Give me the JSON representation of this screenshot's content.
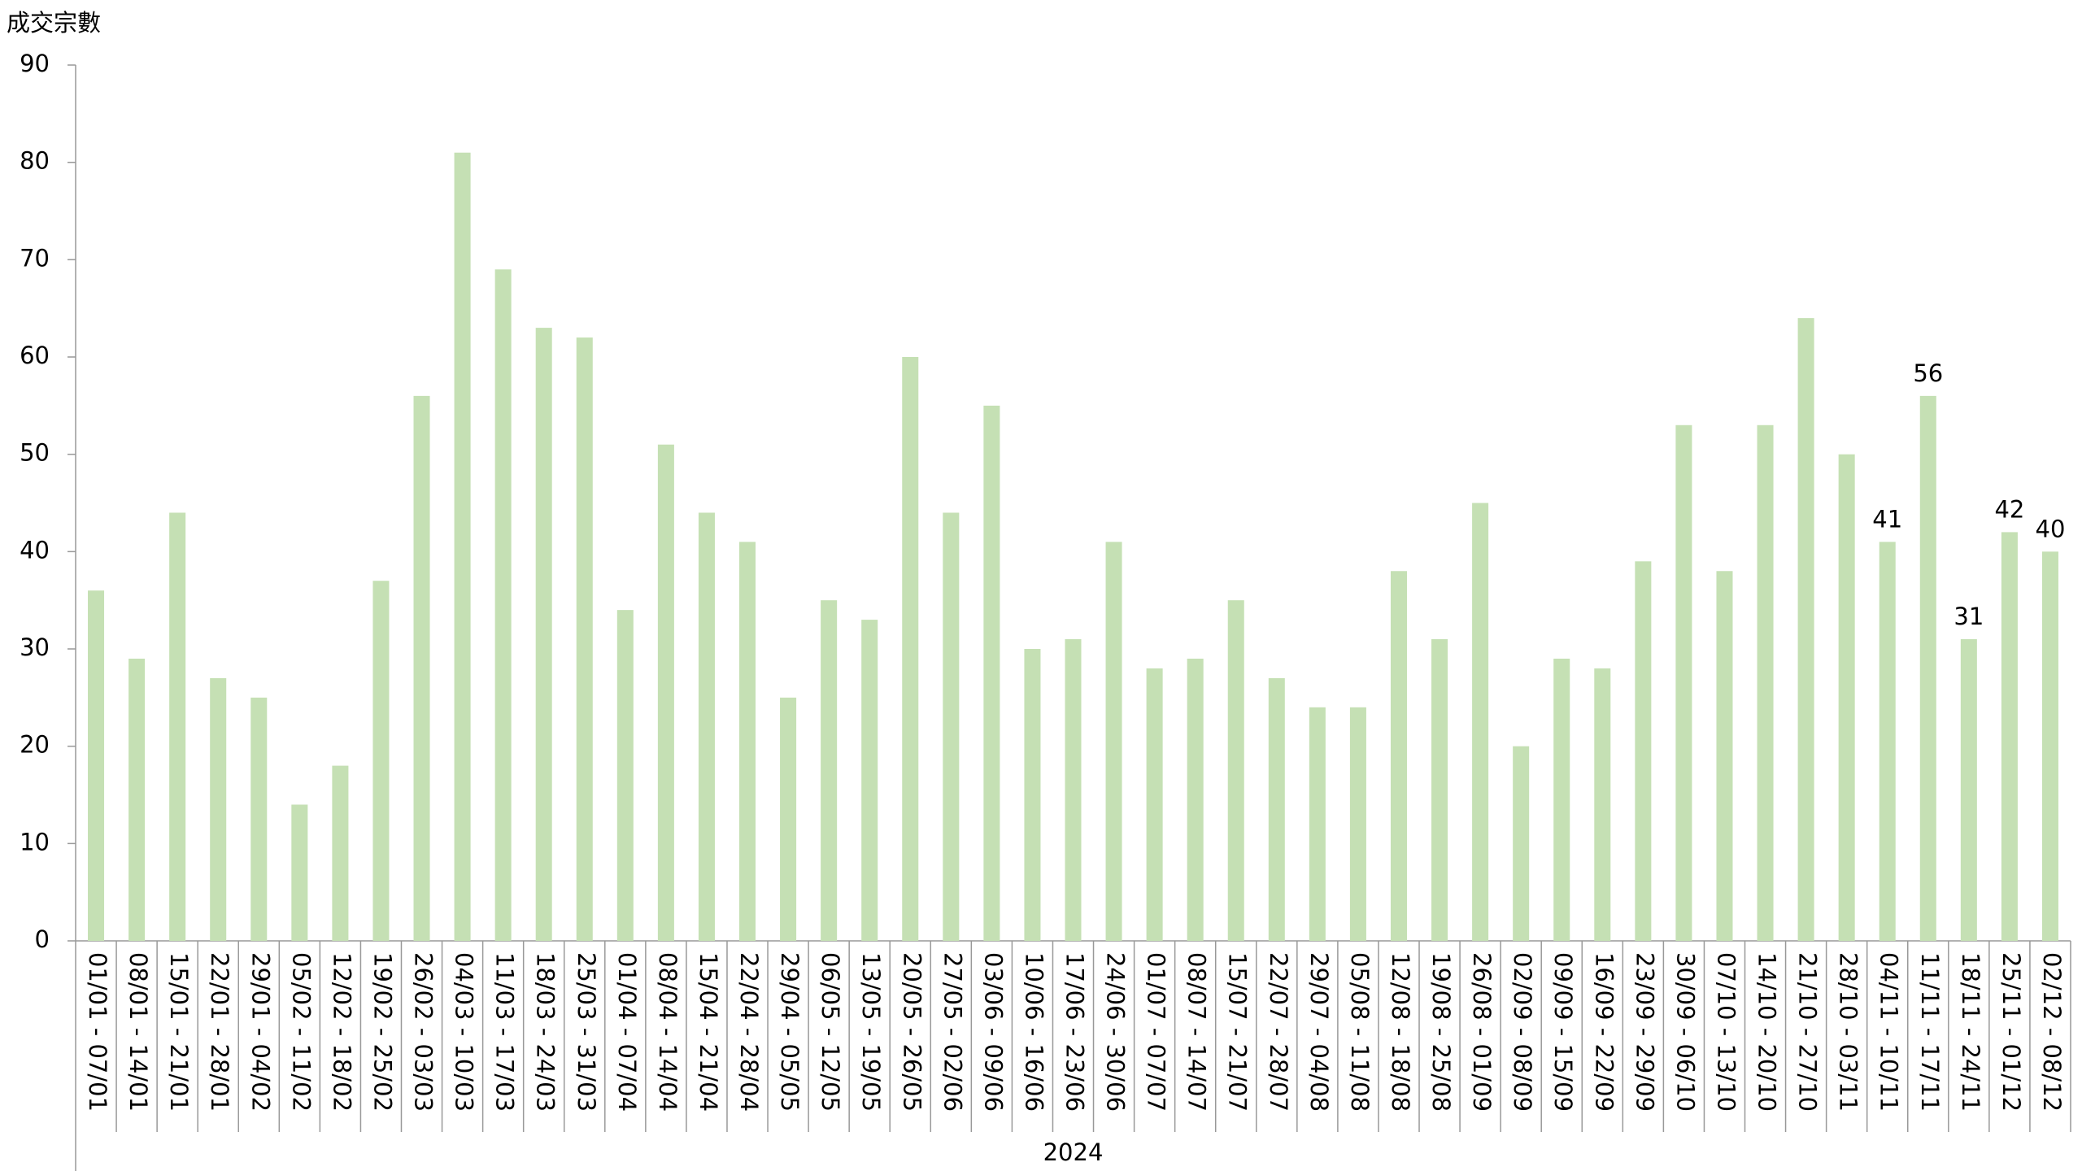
{
  "chart_data": {
    "type": "bar",
    "y_axis_label": "成交宗數",
    "group_label": "2024",
    "categories": [
      "01/01 - 07/01",
      "08/01 - 14/01",
      "15/01 - 21/01",
      "22/01 - 28/01",
      "29/01 - 04/02",
      "05/02 - 11/02",
      "12/02 - 18/02",
      "19/02 - 25/02",
      "26/02 - 03/03",
      "04/03 - 10/03",
      "11/03 - 17/03",
      "18/03 - 24/03",
      "25/03 - 31/03",
      "01/04 - 07/04",
      "08/04 - 14/04",
      "15/04 - 21/04",
      "22/04 - 28/04",
      "29/04 - 05/05",
      "06/05 - 12/05",
      "13/05 - 19/05",
      "20/05 - 26/05",
      "27/05 - 02/06",
      "03/06 - 09/06",
      "10/06 - 16/06",
      "17/06 - 23/06",
      "24/06 - 30/06",
      "01/07 - 07/07",
      "08/07 - 14/07",
      "15/07 - 21/07",
      "22/07 - 28/07",
      "29/07 - 04/08",
      "05/08 - 11/08",
      "12/08 - 18/08",
      "19/08 - 25/08",
      "26/08 - 01/09",
      "02/09 - 08/09",
      "09/09 - 15/09",
      "16/09 - 22/09",
      "23/09 - 29/09",
      "30/09 - 06/10",
      "07/10 - 13/10",
      "14/10 - 20/10",
      "21/10 - 27/10",
      "28/10 - 03/11",
      "04/11 - 10/11",
      "11/11 - 17/11",
      "18/11 - 24/11",
      "25/11 - 01/12",
      "02/12 - 08/12"
    ],
    "values": [
      36,
      29,
      44,
      27,
      25,
      14,
      18,
      37,
      56,
      81,
      69,
      63,
      62,
      34,
      51,
      44,
      41,
      25,
      35,
      33,
      60,
      44,
      55,
      30,
      31,
      41,
      28,
      29,
      35,
      27,
      24,
      24,
      38,
      31,
      45,
      20,
      29,
      28,
      39,
      53,
      38,
      53,
      64,
      50,
      41,
      56,
      31,
      42,
      40
    ],
    "show_label": [
      false,
      false,
      false,
      false,
      false,
      false,
      false,
      false,
      false,
      false,
      false,
      false,
      false,
      false,
      false,
      false,
      false,
      false,
      false,
      false,
      false,
      false,
      false,
      false,
      false,
      false,
      false,
      false,
      false,
      false,
      false,
      false,
      false,
      false,
      false,
      false,
      false,
      false,
      false,
      false,
      false,
      false,
      false,
      false,
      true,
      true,
      true,
      true,
      true
    ],
    "color": "#c5e0b4",
    "ylim": [
      0,
      90
    ],
    "yticks": [
      0,
      10,
      20,
      30,
      40,
      50,
      60,
      70,
      80,
      90
    ],
    "grid": false
  }
}
